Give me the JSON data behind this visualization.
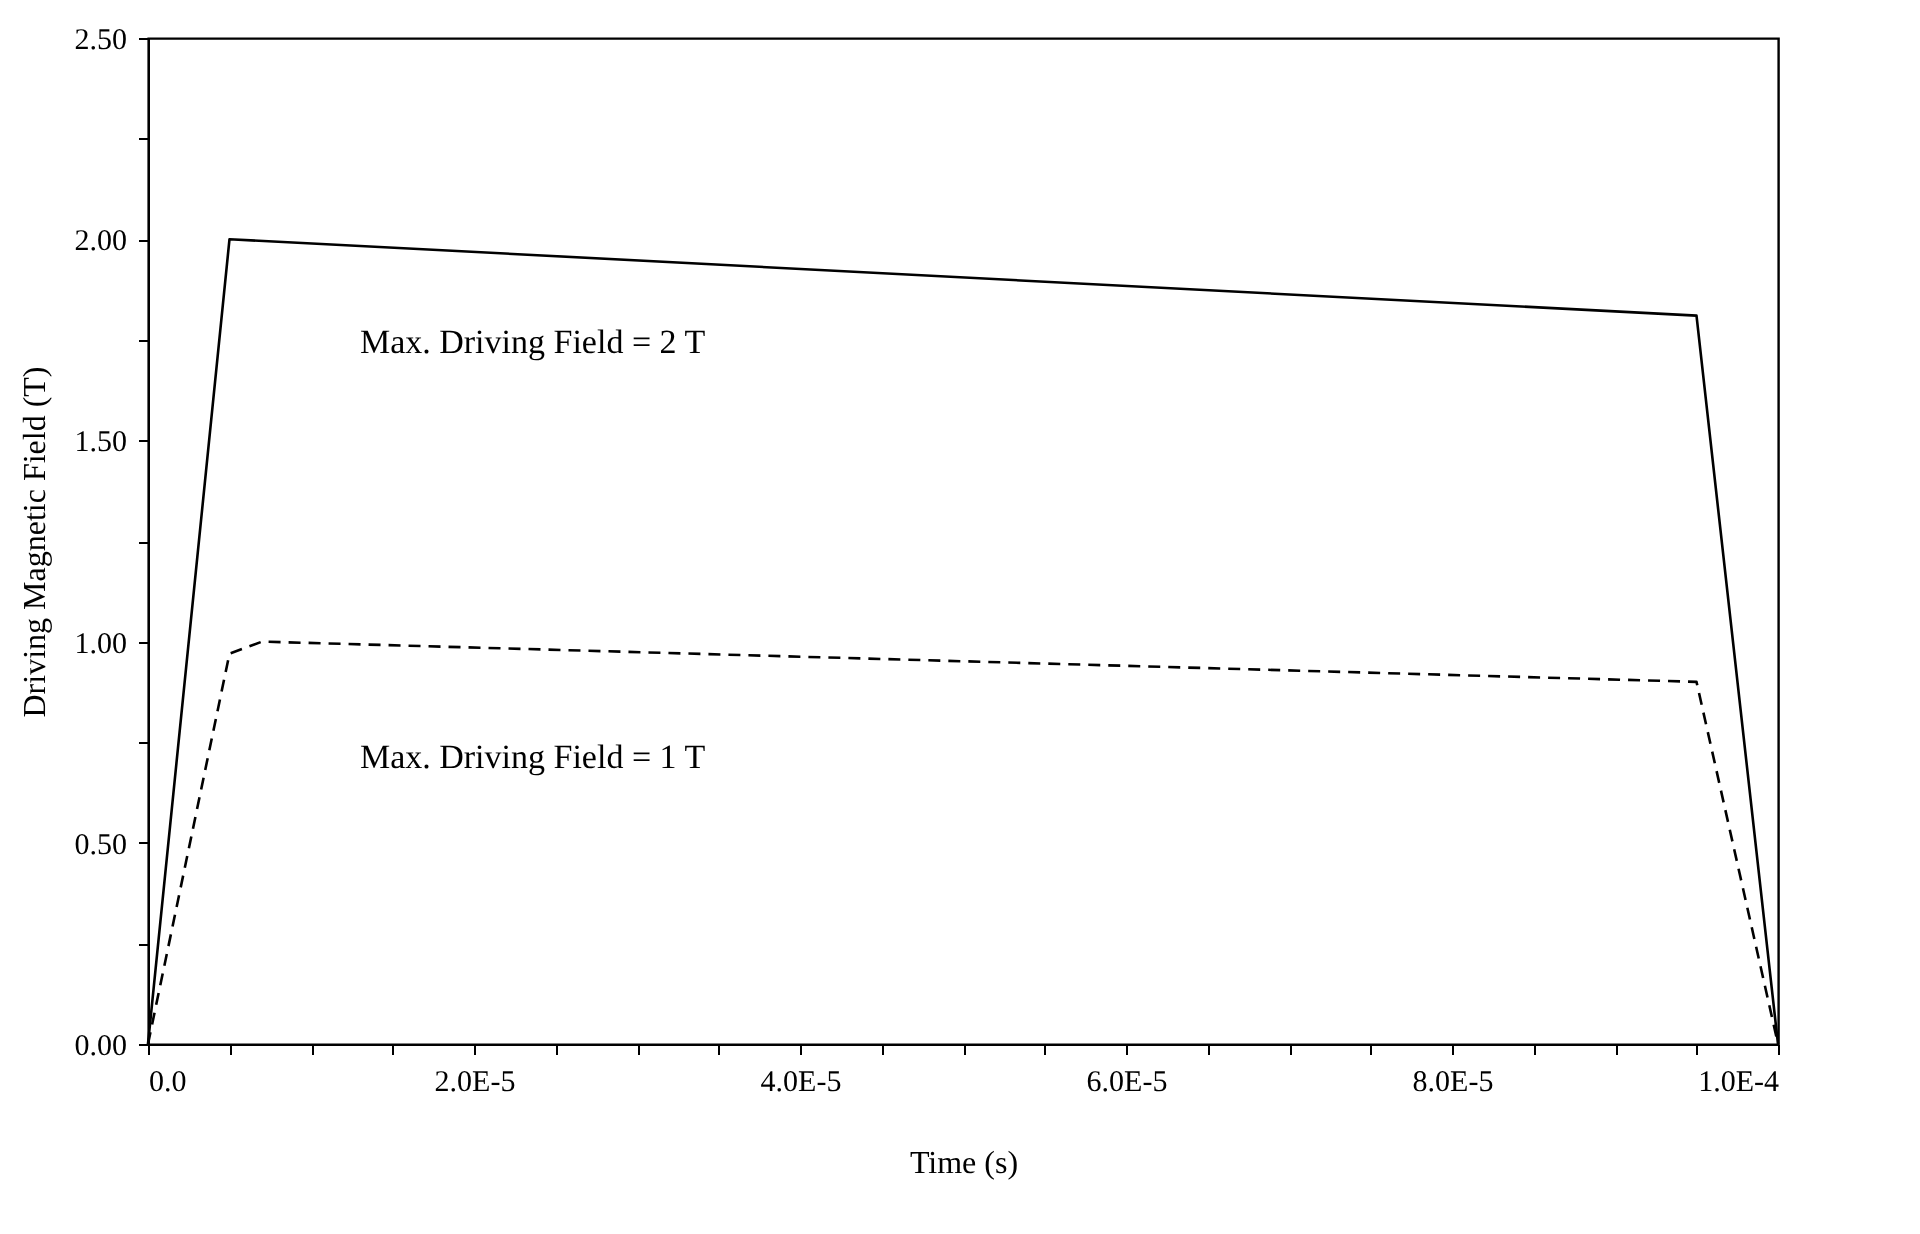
{
  "chart_data": {
    "type": "line",
    "xlabel": "Time (s)",
    "ylabel": "Driving Magnetic Field (T)",
    "series": [
      {
        "name": "Max. Driving Field = 2 T",
        "color": "#000000",
        "line_style": "solid",
        "x": [
          0,
          5e-06,
          9.5e-05,
          0.0001
        ],
        "values": [
          0,
          2.0,
          1.81,
          0
        ]
      },
      {
        "name": "Max. Driving Field = 1 T",
        "color": "#000000",
        "line_style": "dashed",
        "x": [
          0,
          5e-06,
          7e-06,
          9.5e-05,
          0.0001
        ],
        "values": [
          0,
          0.97,
          1.0,
          0.9,
          0
        ]
      }
    ],
    "xlim": [
      0,
      0.0001
    ],
    "xticks": [
      {
        "value": 0,
        "label": "0.0"
      },
      {
        "value": 5e-06,
        "label": null
      },
      {
        "value": 1e-05,
        "label": null
      },
      {
        "value": 1.5e-05,
        "label": null
      },
      {
        "value": 2e-05,
        "label": "2.0E-5"
      },
      {
        "value": 2.5e-05,
        "label": null
      },
      {
        "value": 3e-05,
        "label": null
      },
      {
        "value": 3.5e-05,
        "label": null
      },
      {
        "value": 4e-05,
        "label": "4.0E-5"
      },
      {
        "value": 4.5e-05,
        "label": null
      },
      {
        "value": 5e-05,
        "label": null
      },
      {
        "value": 5.5e-05,
        "label": null
      },
      {
        "value": 6e-05,
        "label": "6.0E-5"
      },
      {
        "value": 6.5e-05,
        "label": null
      },
      {
        "value": 7e-05,
        "label": null
      },
      {
        "value": 7.5e-05,
        "label": null
      },
      {
        "value": 8e-05,
        "label": "8.0E-5"
      },
      {
        "value": 8.5e-05,
        "label": null
      },
      {
        "value": 9e-05,
        "label": null
      },
      {
        "value": 9.5e-05,
        "label": null
      },
      {
        "value": 0.0001,
        "label": "1.0E-4"
      }
    ],
    "ylim": [
      0,
      2.5
    ],
    "yticks": [
      {
        "value": 0,
        "label": "0.00"
      },
      {
        "value": 0.25,
        "label": null
      },
      {
        "value": 0.5,
        "label": "0.50"
      },
      {
        "value": 0.75,
        "label": null
      },
      {
        "value": 1.0,
        "label": "1.00"
      },
      {
        "value": 1.25,
        "label": null
      },
      {
        "value": 1.5,
        "label": "1.50"
      },
      {
        "value": 1.75,
        "label": null
      },
      {
        "value": 2.0,
        "label": "2.00"
      },
      {
        "value": 2.25,
        "label": null
      },
      {
        "value": 2.5,
        "label": "2.50"
      }
    ],
    "grid": false,
    "legend": false,
    "marker": "none"
  }
}
